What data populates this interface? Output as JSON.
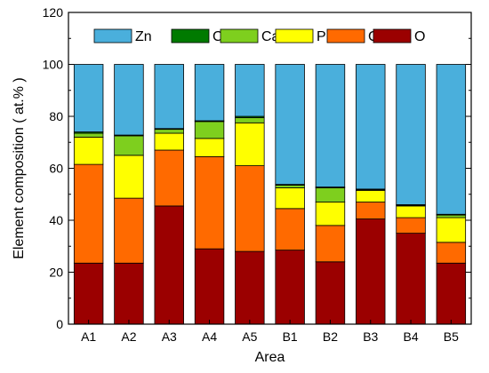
{
  "chart_data": {
    "type": "bar",
    "stacked": true,
    "xlabel": "Area",
    "ylabel": "Element composition ( at.% )",
    "ylim": [
      0,
      120
    ],
    "yticks": [
      0,
      20,
      40,
      60,
      80,
      100,
      120
    ],
    "categories": [
      "A1",
      "A2",
      "A3",
      "A4",
      "A5",
      "B1",
      "B2",
      "B3",
      "B4",
      "B5"
    ],
    "legend_placement": "top",
    "series": [
      {
        "name": "O",
        "color": "#9b0000",
        "values": [
          23.5,
          23.5,
          45.5,
          29.0,
          28.0,
          28.5,
          24.0,
          40.5,
          35.0,
          23.5
        ]
      },
      {
        "name": "C",
        "color": "#ff6a00",
        "values": [
          38.0,
          25.0,
          21.5,
          35.5,
          33.0,
          16.0,
          14.0,
          6.5,
          6.0,
          8.0
        ]
      },
      {
        "name": "P",
        "color": "#ffff00",
        "values": [
          10.5,
          16.5,
          6.5,
          7.0,
          16.5,
          8.0,
          9.0,
          4.5,
          4.5,
          9.5
        ]
      },
      {
        "name": "Ca",
        "color": "#7ecf1e",
        "values": [
          1.5,
          7.5,
          1.5,
          6.5,
          2.0,
          1.0,
          5.5,
          0.3,
          0.3,
          1.0
        ]
      },
      {
        "name": "Cu",
        "color": "#007a00",
        "values": [
          0.5,
          0.3,
          0.3,
          0.3,
          0.5,
          0.3,
          0.3,
          0.2,
          0.2,
          0.3
        ]
      },
      {
        "name": "Zn",
        "color": "#4aafdc",
        "values": [
          26.0,
          27.2,
          24.7,
          21.7,
          20.0,
          46.2,
          47.2,
          48.0,
          54.0,
          57.7
        ]
      }
    ],
    "legend_order": [
      "Zn",
      "Cu",
      "Ca",
      "P",
      "C",
      "O"
    ]
  }
}
